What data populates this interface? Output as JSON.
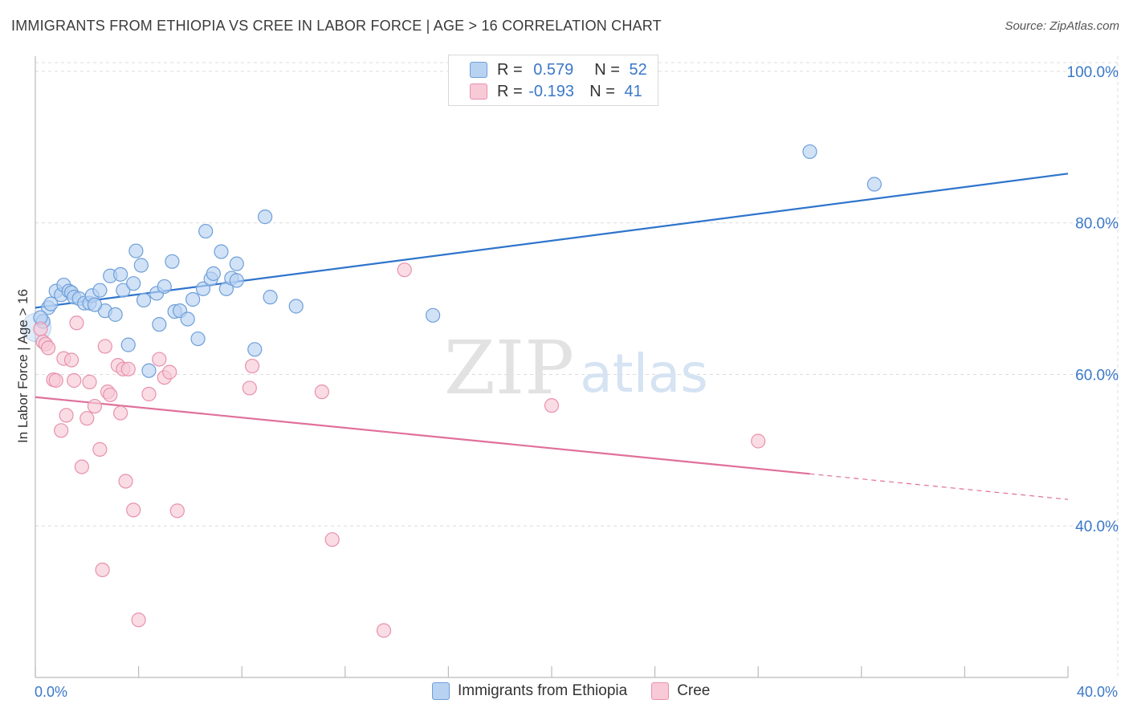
{
  "title": "IMMIGRANTS FROM ETHIOPIA VS CREE IN LABOR FORCE | AGE > 16 CORRELATION CHART",
  "source": "Source: ZipAtlas.com",
  "watermark": {
    "zip": "ZIP",
    "atlas": "atlas"
  },
  "legend": {
    "rows": [
      {
        "r_label": "R =",
        "r_value": "0.579",
        "n_label": "N =",
        "n_value": "52"
      },
      {
        "r_label": "R =",
        "r_value": "-0.193",
        "n_label": "N =",
        "n_value": "41"
      }
    ]
  },
  "x_axis": {
    "min_label": "0.0%",
    "max_label": "40.0%"
  },
  "colors": {
    "blue_fill": "#b8d2f2",
    "blue_stroke": "#6e9fd8",
    "blue_line": "#2f74cc",
    "pink_fill": "#f8c9d7",
    "pink_stroke": "#e891ac",
    "pink_line": "#e0709a",
    "tick_text": "#3a78c9",
    "grid": "#dcdcdc"
  },
  "chart_data": {
    "type": "scatter",
    "title": "IMMIGRANTS FROM ETHIOPIA VS CREE IN LABOR FORCE | AGE > 16 CORRELATION CHART",
    "xlabel": "",
    "ylabel": "In Labor Force | Age > 16",
    "xlim": [
      0,
      40
    ],
    "ylim": [
      20,
      102
    ],
    "y_ticks": [
      {
        "value": 40,
        "label": "40.0%"
      },
      {
        "value": 60,
        "label": "60.0%"
      },
      {
        "value": 80,
        "label": "80.0%"
      },
      {
        "value": 100,
        "label": "100.0%"
      }
    ],
    "series": [
      {
        "name": "Immigrants from Ethiopia",
        "color": "blue",
        "r": 0.579,
        "n": 52,
        "trend": {
          "x0": 0,
          "y0": 68.8,
          "x1": 40,
          "y1": 86.5,
          "solid_to": 40
        },
        "points": [
          [
            0.3,
            67.0
          ],
          [
            0.5,
            68.8
          ],
          [
            0.6,
            69.3
          ],
          [
            0.8,
            71.0
          ],
          [
            1.0,
            70.5
          ],
          [
            1.1,
            71.8
          ],
          [
            1.3,
            71.0
          ],
          [
            1.4,
            70.8
          ],
          [
            1.5,
            70.2
          ],
          [
            1.7,
            70.0
          ],
          [
            1.9,
            69.4
          ],
          [
            2.1,
            69.4
          ],
          [
            2.2,
            70.4
          ],
          [
            2.5,
            71.1
          ],
          [
            2.7,
            68.4
          ],
          [
            2.9,
            73.0
          ],
          [
            3.1,
            67.9
          ],
          [
            3.3,
            73.2
          ],
          [
            3.4,
            71.1
          ],
          [
            3.6,
            63.9
          ],
          [
            3.8,
            72.0
          ],
          [
            3.9,
            76.3
          ],
          [
            4.1,
            74.4
          ],
          [
            4.2,
            69.8
          ],
          [
            4.4,
            60.5
          ],
          [
            4.7,
            70.7
          ],
          [
            4.8,
            66.6
          ],
          [
            5.0,
            71.6
          ],
          [
            5.3,
            74.9
          ],
          [
            5.4,
            68.3
          ],
          [
            5.6,
            68.4
          ],
          [
            5.9,
            67.3
          ],
          [
            6.1,
            69.9
          ],
          [
            6.3,
            64.7
          ],
          [
            6.5,
            71.3
          ],
          [
            6.6,
            78.9
          ],
          [
            6.8,
            72.6
          ],
          [
            6.9,
            73.3
          ],
          [
            7.2,
            76.2
          ],
          [
            7.4,
            71.3
          ],
          [
            7.6,
            72.7
          ],
          [
            7.8,
            74.6
          ],
          [
            7.8,
            72.4
          ],
          [
            8.5,
            63.3
          ],
          [
            8.9,
            80.8
          ],
          [
            9.1,
            70.2
          ],
          [
            10.1,
            69.0
          ],
          [
            15.4,
            67.8
          ],
          [
            30.0,
            89.4
          ],
          [
            32.5,
            85.1
          ],
          [
            0.2,
            67.5
          ],
          [
            2.3,
            69.2
          ]
        ]
      },
      {
        "name": "Cree",
        "color": "pink",
        "r": -0.193,
        "n": 41,
        "trend": {
          "x0": 0,
          "y0": 57.0,
          "x1": 40,
          "y1": 43.5,
          "solid_to": 30.0
        },
        "points": [
          [
            0.2,
            66.0
          ],
          [
            0.3,
            64.3
          ],
          [
            0.4,
            64.0
          ],
          [
            0.5,
            63.5
          ],
          [
            0.7,
            59.3
          ],
          [
            0.8,
            59.2
          ],
          [
            1.0,
            52.6
          ],
          [
            1.1,
            62.1
          ],
          [
            1.2,
            54.6
          ],
          [
            1.4,
            61.9
          ],
          [
            1.5,
            59.2
          ],
          [
            1.6,
            66.8
          ],
          [
            1.8,
            47.8
          ],
          [
            2.0,
            54.2
          ],
          [
            2.1,
            59.0
          ],
          [
            2.3,
            55.8
          ],
          [
            2.5,
            50.1
          ],
          [
            2.6,
            34.2
          ],
          [
            2.7,
            63.7
          ],
          [
            2.8,
            57.7
          ],
          [
            2.9,
            57.3
          ],
          [
            3.2,
            61.2
          ],
          [
            3.3,
            54.9
          ],
          [
            3.4,
            60.7
          ],
          [
            3.5,
            45.9
          ],
          [
            3.6,
            60.7
          ],
          [
            3.8,
            42.1
          ],
          [
            4.0,
            27.6
          ],
          [
            4.4,
            57.4
          ],
          [
            4.8,
            62.0
          ],
          [
            5.0,
            59.6
          ],
          [
            5.2,
            60.3
          ],
          [
            5.5,
            42.0
          ],
          [
            8.3,
            58.2
          ],
          [
            8.4,
            61.1
          ],
          [
            11.1,
            57.7
          ],
          [
            11.5,
            38.2
          ],
          [
            13.5,
            26.2
          ],
          [
            14.3,
            73.8
          ],
          [
            20.0,
            55.9
          ],
          [
            28.0,
            51.2
          ]
        ]
      }
    ]
  }
}
